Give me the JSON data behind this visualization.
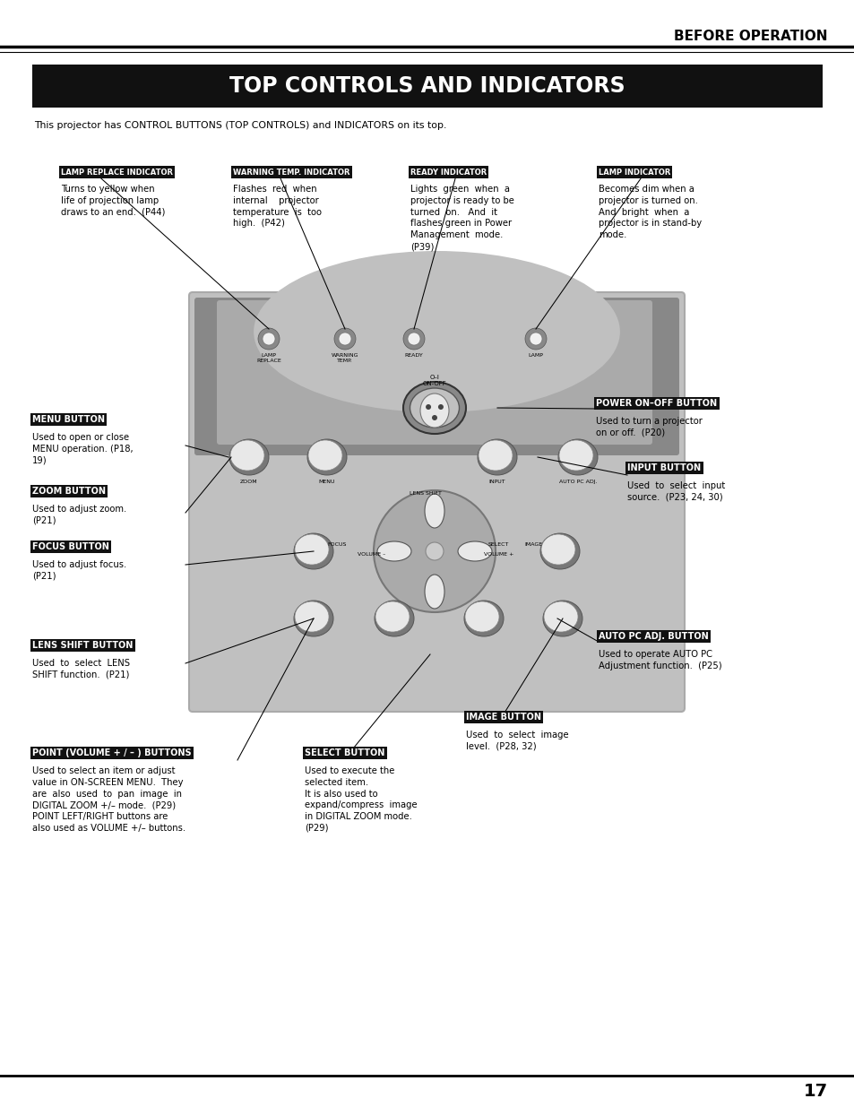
{
  "page_title": "BEFORE OPERATION",
  "section_title": "TOP CONTROLS AND INDICATORS",
  "intro_text": "This projector has CONTROL BUTTONS (TOP CONTROLS) and INDICATORS on its top.",
  "page_number": "17",
  "bg_color": "#ffffff",
  "title_bg": "#111111",
  "title_text_color": "#ffffff",
  "label_bg": "#111111",
  "label_text_color": "#ffffff",
  "body_text_color": "#000000",
  "panel_bg": "#c8c8c8",
  "panel_dark": "#999999",
  "panel_border": "#aaaaaa"
}
